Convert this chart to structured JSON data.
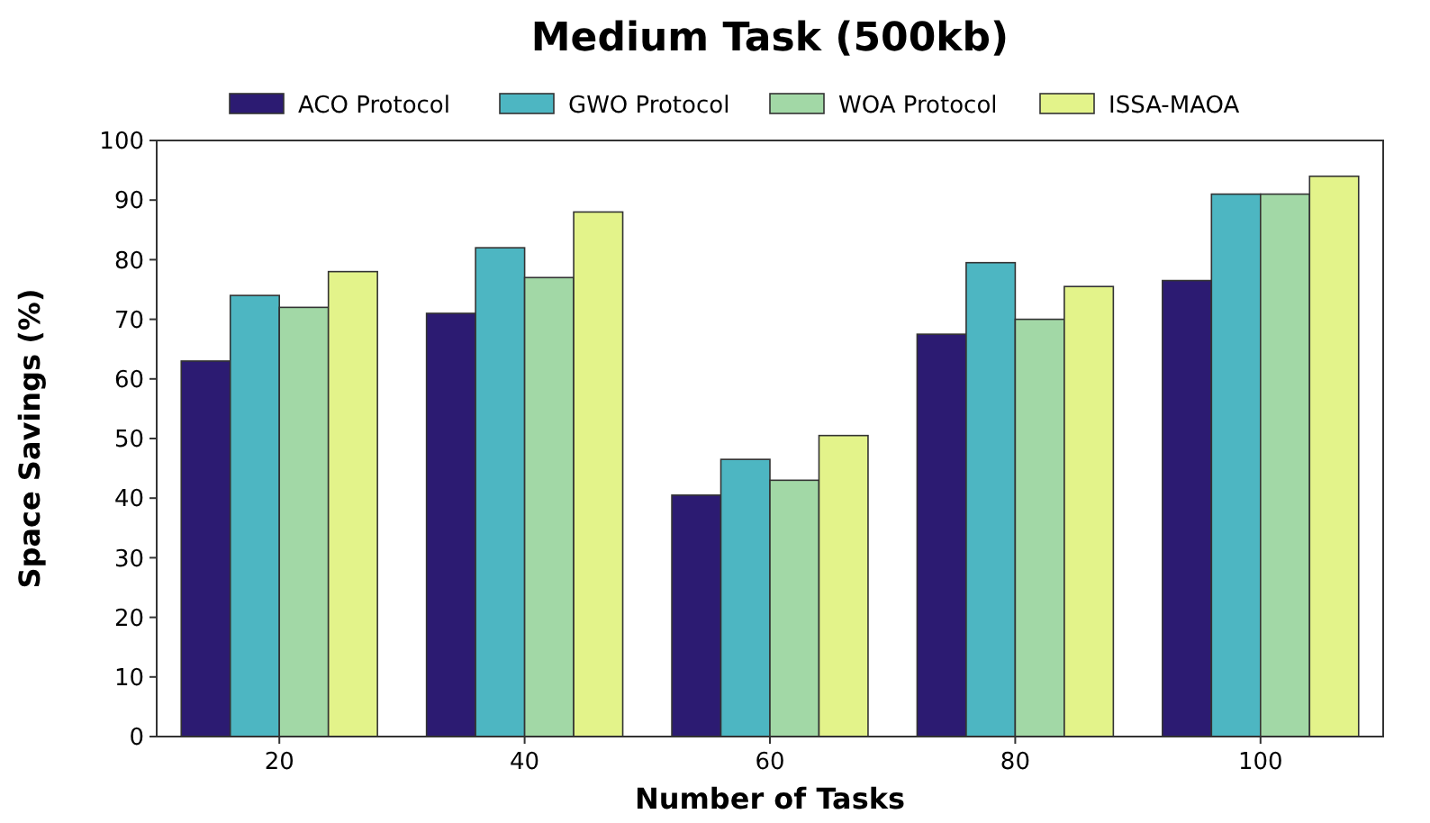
{
  "chart_data": {
    "type": "bar",
    "title": "Medium Task (500kb)",
    "xlabel": "Number of Tasks",
    "ylabel": "Space Savings (%)",
    "categories": [
      "20",
      "40",
      "60",
      "80",
      "100"
    ],
    "series": [
      {
        "name": "ACO Protocol",
        "color": "#2c1b72",
        "values": [
          63,
          71,
          40.5,
          67.5,
          76.5
        ]
      },
      {
        "name": "GWO Protocol",
        "color": "#4db6c2",
        "values": [
          74,
          82,
          46.5,
          79.5,
          91
        ]
      },
      {
        "name": "WOA Protocol",
        "color": "#a2d8a6",
        "values": [
          72,
          77,
          43,
          70,
          91
        ]
      },
      {
        "name": "ISSA-MAOA",
        "color": "#e3f38a",
        "values": [
          78,
          88,
          50.5,
          75.5,
          94
        ]
      }
    ],
    "ylim": [
      0,
      100
    ],
    "yticks": [
      0,
      10,
      20,
      30,
      40,
      50,
      60,
      70,
      80,
      90,
      100
    ],
    "legend": "top",
    "grid": false
  }
}
